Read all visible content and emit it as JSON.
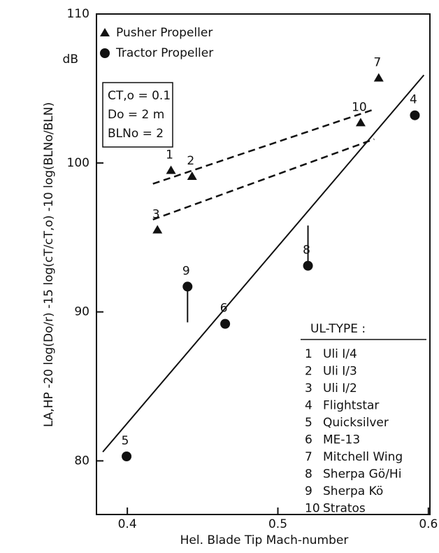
{
  "chart_data": {
    "type": "scatter",
    "xlabel": "Hel. Blade Tip  Mach-number",
    "ylabel": "LA,HP -20 log(Do/r) -15 log(cT/cT,o) -10 log(BLNo/BLN)",
    "yunit": "dB",
    "xlim": [
      0.3795,
      0.601
    ],
    "ylim": [
      76.4,
      110
    ],
    "xticks": [
      0.4,
      0.5,
      0.6
    ],
    "yticks": [
      80,
      90,
      100,
      110
    ],
    "series": [
      {
        "name": "Pusher Propeller",
        "marker": "triangle",
        "color": "#111111",
        "labels": [
          "1",
          "2",
          "3",
          "7",
          "10"
        ],
        "x": [
          0.429,
          0.443,
          0.42,
          0.567,
          0.555
        ],
        "values": [
          99.5,
          99.1,
          95.5,
          105.7,
          102.7
        ]
      },
      {
        "name": "Tractor Propeller",
        "marker": "circle",
        "color": "#111111",
        "labels": [
          "4",
          "5",
          "6",
          "8",
          "9"
        ],
        "x": [
          0.591,
          0.3995,
          0.465,
          0.52,
          0.44
        ],
        "values": [
          103.2,
          80.3,
          89.2,
          93.1,
          91.7
        ]
      }
    ],
    "lines": [
      {
        "style": "solid",
        "points": [
          [
            0.3837,
            80.6
          ],
          [
            0.597,
            105.9
          ]
        ]
      },
      {
        "style": "dashed",
        "points": [
          [
            0.417,
            98.6
          ],
          [
            0.564,
            103.6
          ]
        ]
      },
      {
        "style": "dashed",
        "points": [
          [
            0.417,
            96.2
          ],
          [
            0.564,
            101.6
          ]
        ]
      },
      {
        "style": "solid",
        "points": [
          [
            0.44,
            91.7
          ],
          [
            0.44,
            89.3
          ]
        ]
      },
      {
        "style": "solid",
        "points": [
          [
            0.52,
            93.1
          ],
          [
            0.52,
            95.8
          ]
        ]
      }
    ],
    "conditions": [
      "CT,o = 0.1",
      "Do = 2 m",
      "BLNo = 2"
    ],
    "table_title": "UL-TYPE :",
    "table": [
      [
        "1",
        "Uli I/4"
      ],
      [
        "2",
        "Uli I/3"
      ],
      [
        "3",
        "Uli I/2"
      ],
      [
        "4",
        "Flightstar"
      ],
      [
        "5",
        "Quicksilver"
      ],
      [
        "6",
        "ME-13"
      ],
      [
        "7",
        "Mitchell Wing"
      ],
      [
        "8",
        "Sherpa Gö/Hi"
      ],
      [
        "9",
        "Sherpa Kö"
      ],
      [
        "10",
        "Stratos"
      ]
    ]
  }
}
